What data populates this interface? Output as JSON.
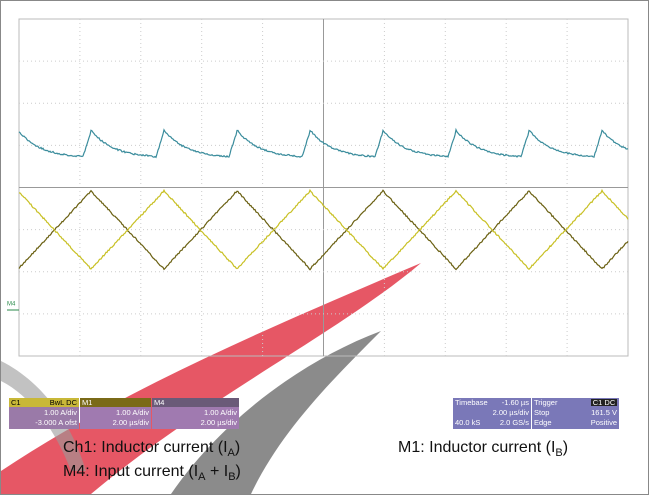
{
  "scope": {
    "ground_marker": "M4",
    "channels": [
      {
        "name": "C1",
        "coupling": "BwL DC",
        "scale": "1.00 A/div",
        "offset": "-3.000 A ofst"
      },
      {
        "name": "M1",
        "scale": "1.00 A/div",
        "timebase": "2.00 µs/div"
      },
      {
        "name": "M4",
        "scale": "1.00 A/div",
        "timebase": "2.00 µs/div"
      }
    ],
    "timebase": {
      "label": "Timebase",
      "delay": "-1.60 µs",
      "scale": "2.00 µs/div",
      "samples": "40.0 kS",
      "rate": "2.0 GS/s"
    },
    "trigger": {
      "label": "Trigger",
      "source": "C1 DC",
      "mode": "Stop",
      "level": "161.5 V",
      "type": "Edge",
      "slope": "Positive"
    }
  },
  "captions": [
    {
      "parts": [
        "Ch1: Inductor current (I",
        "A",
        ")"
      ]
    },
    {
      "parts": [
        "M1: Inductor current (I",
        "B",
        ")"
      ]
    },
    {
      "parts": [
        "M4: Input current (I",
        "A",
        " + I",
        "B",
        ")"
      ]
    }
  ]
}
